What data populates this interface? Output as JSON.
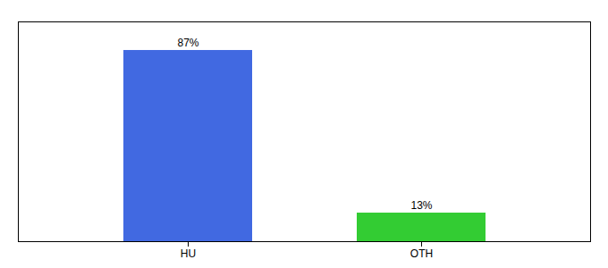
{
  "chart_data": {
    "type": "bar",
    "categories": [
      "HU",
      "OTH"
    ],
    "values": [
      87,
      13
    ],
    "value_labels": [
      "87%",
      "13%"
    ],
    "colors": [
      "#4169e1",
      "#33cc33"
    ],
    "data_labels": true,
    "ylim": [
      0,
      100
    ],
    "tick_labels": "x"
  }
}
